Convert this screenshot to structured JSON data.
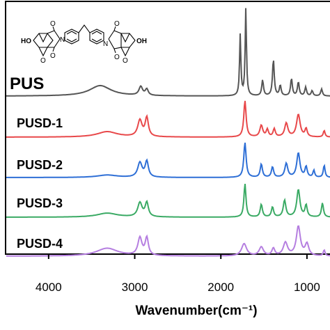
{
  "chart_data": {
    "type": "line",
    "xlabel": "Wavenumber(cm⁻¹)",
    "ylabel": "",
    "xlim": [
      4500,
      700
    ],
    "x_reversed": true,
    "grid": false,
    "legend": "none",
    "xticks": [
      4000,
      3000,
      2000,
      1000
    ],
    "xtick_labels": [
      "4000",
      "3000",
      "2000",
      "1000"
    ],
    "series": [
      {
        "name": "PUS",
        "color": "#555555",
        "peaks": [
          {
            "x": 3400,
            "y": 0.12,
            "w": 150
          },
          {
            "x": 2930,
            "y": 0.1,
            "w": 25
          },
          {
            "x": 2860,
            "y": 0.07,
            "w": 20
          },
          {
            "x": 1775,
            "y": 0.7,
            "w": 9
          },
          {
            "x": 1710,
            "y": 1.0,
            "w": 9
          },
          {
            "x": 1515,
            "y": 0.18,
            "w": 12
          },
          {
            "x": 1390,
            "y": 0.42,
            "w": 12
          },
          {
            "x": 1310,
            "y": 0.12,
            "w": 12
          },
          {
            "x": 1180,
            "y": 0.2,
            "w": 12
          },
          {
            "x": 1100,
            "y": 0.16,
            "w": 12
          },
          {
            "x": 1015,
            "y": 0.1,
            "w": 12
          },
          {
            "x": 940,
            "y": 0.06,
            "w": 12
          },
          {
            "x": 830,
            "y": 0.08,
            "w": 12
          }
        ]
      },
      {
        "name": "PUSD-1",
        "color": "#e8484a",
        "peaks": [
          {
            "x": 3320,
            "y": 0.15,
            "w": 140
          },
          {
            "x": 2940,
            "y": 0.45,
            "w": 30
          },
          {
            "x": 2860,
            "y": 0.52,
            "w": 22
          },
          {
            "x": 1720,
            "y": 1.0,
            "w": 16
          },
          {
            "x": 1530,
            "y": 0.32,
            "w": 20
          },
          {
            "x": 1460,
            "y": 0.2,
            "w": 15
          },
          {
            "x": 1380,
            "y": 0.22,
            "w": 15
          },
          {
            "x": 1240,
            "y": 0.38,
            "w": 22
          },
          {
            "x": 1100,
            "y": 0.62,
            "w": 25
          },
          {
            "x": 1010,
            "y": 0.22,
            "w": 15
          },
          {
            "x": 800,
            "y": 0.18,
            "w": 12
          }
        ]
      },
      {
        "name": "PUSD-2",
        "color": "#2e6fd6",
        "peaks": [
          {
            "x": 3320,
            "y": 0.07,
            "w": 140
          },
          {
            "x": 2940,
            "y": 0.42,
            "w": 30
          },
          {
            "x": 2860,
            "y": 0.45,
            "w": 22
          },
          {
            "x": 1720,
            "y": 1.0,
            "w": 16
          },
          {
            "x": 1530,
            "y": 0.38,
            "w": 15
          },
          {
            "x": 1400,
            "y": 0.3,
            "w": 15
          },
          {
            "x": 1240,
            "y": 0.4,
            "w": 20
          },
          {
            "x": 1100,
            "y": 0.7,
            "w": 22
          },
          {
            "x": 1010,
            "y": 0.3,
            "w": 15
          },
          {
            "x": 920,
            "y": 0.2,
            "w": 12
          },
          {
            "x": 800,
            "y": 0.35,
            "w": 12
          }
        ]
      },
      {
        "name": "PUSD-3",
        "color": "#3aaa64",
        "peaks": [
          {
            "x": 3320,
            "y": 0.12,
            "w": 140
          },
          {
            "x": 2940,
            "y": 0.42,
            "w": 30
          },
          {
            "x": 2860,
            "y": 0.42,
            "w": 22
          },
          {
            "x": 1720,
            "y": 1.0,
            "w": 14
          },
          {
            "x": 1530,
            "y": 0.38,
            "w": 15
          },
          {
            "x": 1400,
            "y": 0.3,
            "w": 15
          },
          {
            "x": 1260,
            "y": 0.5,
            "w": 18
          },
          {
            "x": 1100,
            "y": 0.82,
            "w": 22
          },
          {
            "x": 1010,
            "y": 0.35,
            "w": 15
          },
          {
            "x": 820,
            "y": 0.42,
            "w": 14
          }
        ]
      },
      {
        "name": "PUSD-4",
        "color": "#b57ee0",
        "peaks": [
          {
            "x": 3320,
            "y": 0.27,
            "w": 150
          },
          {
            "x": 2940,
            "y": 0.6,
            "w": 28
          },
          {
            "x": 2860,
            "y": 0.6,
            "w": 22
          },
          {
            "x": 1730,
            "y": 0.42,
            "w": 35
          },
          {
            "x": 1530,
            "y": 0.3,
            "w": 30
          },
          {
            "x": 1390,
            "y": 0.25,
            "w": 20
          },
          {
            "x": 1250,
            "y": 0.45,
            "w": 30
          },
          {
            "x": 1100,
            "y": 1.0,
            "w": 28
          },
          {
            "x": 1000,
            "y": 0.4,
            "w": 25
          },
          {
            "x": 800,
            "y": 0.2,
            "w": 12
          }
        ]
      }
    ]
  },
  "structure_labels": {
    "left_oh": "HO",
    "right_oh": "OH",
    "left_n": "N",
    "right_n": "N",
    "oxygens": [
      "O",
      "O",
      "O",
      "O",
      "O",
      "O"
    ]
  }
}
